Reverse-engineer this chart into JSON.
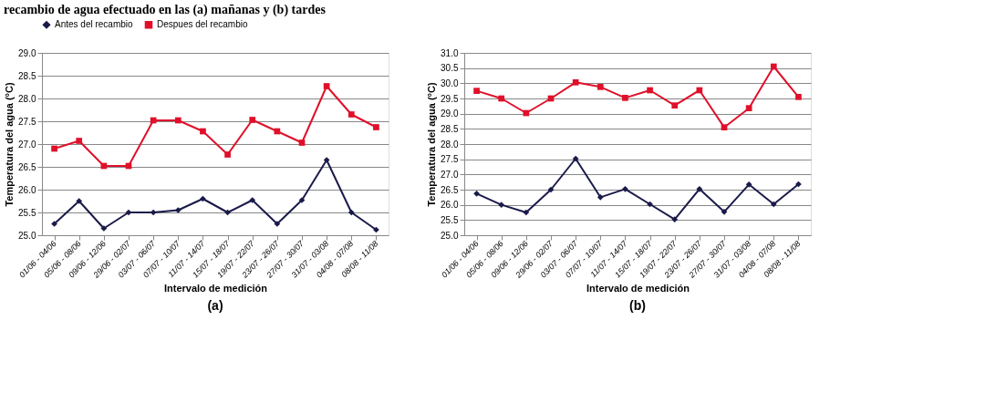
{
  "chart_data": [
    {
      "type": "line",
      "title": "recambio de agua efectuado en las (a) mañanas y (b) tardes",
      "annotations": [
        "(a)"
      ],
      "xlabel": "Intervalo de medición",
      "ylabel": "Temperatura del agua (°C)",
      "categories": [
        "01/06 - 04/06",
        "05/06 - 08/06",
        "09/06 - 12/06",
        "29/06 - 02/07",
        "03/07 - 06/07",
        "07/07 - 10/07",
        "11/07 - 14/07",
        "15/07 - 18/07",
        "19/07 - 22/07",
        "23/07 - 26/07",
        "27/07 - 30/07",
        "31/07 - 03/08",
        "04/08 - 07/08",
        "08/08 - 11/08"
      ],
      "series": [
        {
          "name": "Antes del recambio",
          "color": "#1a1a4a",
          "marker": "diamond",
          "values": [
            25.25,
            25.75,
            25.15,
            25.5,
            25.5,
            25.55,
            25.8,
            25.5,
            25.77,
            25.25,
            25.77,
            26.65,
            25.5,
            25.12
          ]
        },
        {
          "name": "Despues del recambio",
          "color": "#e0102a",
          "marker": "square",
          "values": [
            26.9,
            27.07,
            26.52,
            26.52,
            27.52,
            27.52,
            27.28,
            26.77,
            27.53,
            27.28,
            27.03,
            28.27,
            27.65,
            27.37
          ]
        }
      ],
      "ylim": [
        25.0,
        29.0
      ],
      "yticks": [
        {
          "value": 25,
          "label": "25.0"
        },
        25.5,
        {
          "value": 26,
          "label": "26.0"
        },
        26.5,
        {
          "value": 27,
          "label": "27.0"
        },
        27.5,
        {
          "value": 28,
          "label": "28.0"
        },
        28.5,
        {
          "value": 29,
          "label": "29.0"
        }
      ],
      "grid": "y",
      "legend": "top",
      "line_style": "solid"
    },
    {
      "type": "line",
      "annotations": [
        "(b)"
      ],
      "xlabel": "Intervalo de medición",
      "ylabel": "Temperatura del agua (°C)",
      "categories": [
        "01/06 - 04/06",
        "05/06 - 08/06",
        "09/06 - 12/06",
        "29/06 - 02/07",
        "03/07 - 06/07",
        "07/07 - 10/07",
        "11/07 - 14/07",
        "15/07 - 18/07",
        "19/07 - 22/07",
        "23/07 - 26/07",
        "27/07 - 30/07",
        "31/07 - 03/08",
        "04/08 - 07/08",
        "08/08 - 11/08"
      ],
      "series": [
        {
          "name": "Antes del recambio",
          "color": "#1a1a4a",
          "marker": "diamond",
          "values": [
            26.37,
            26.0,
            25.75,
            26.5,
            27.52,
            26.25,
            26.52,
            26.02,
            25.52,
            26.52,
            25.77,
            26.67,
            26.02,
            26.68
          ]
        },
        {
          "name": "Despues del recambio",
          "color": "#e0102a",
          "marker": "square",
          "values": [
            29.75,
            29.5,
            29.02,
            29.5,
            30.03,
            29.88,
            29.52,
            29.77,
            29.27,
            29.77,
            28.55,
            29.18,
            30.55,
            29.55
          ]
        }
      ],
      "ylim": [
        25.0,
        31.0
      ],
      "yticks": [
        {
          "value": 25,
          "label": "25.0"
        },
        25.5,
        {
          "value": 26,
          "label": "26.0"
        },
        26.5,
        {
          "value": 27,
          "label": "27.0"
        },
        27.5,
        {
          "value": 28,
          "label": "28.0"
        },
        28.5,
        {
          "value": 29,
          "label": "29.0"
        },
        29.5,
        {
          "value": 30,
          "label": "30.0"
        },
        30.5,
        {
          "value": 31,
          "label": "31.0"
        }
      ],
      "grid": "y",
      "legend": "top",
      "line_style": "solid"
    }
  ]
}
